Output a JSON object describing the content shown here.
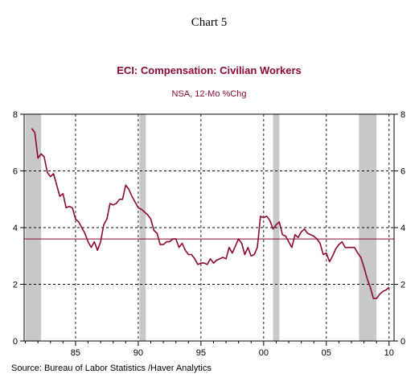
{
  "header": {
    "chart_number": "Chart 5"
  },
  "footer": {
    "source": "Source:  Bureau of Labor Statistics /Haver Analytics"
  },
  "colors": {
    "series": "#8b0a2e",
    "title": "#8b0a2e",
    "recession": "#c8c8c8",
    "grid": "#000000",
    "reference_line": "#8b0a2e"
  },
  "chart_data": {
    "type": "line",
    "title": "ECI: Compensation: Civilian Workers",
    "subtitle": "NSA, 12-Mo %Chg",
    "xlabel": "",
    "ylabel": "",
    "xlim": [
      1980.9,
      2010.4
    ],
    "ylim": [
      0,
      8
    ],
    "x_ticks": [
      1985,
      1990,
      1995,
      2000,
      2005,
      2010
    ],
    "x_tick_labels": [
      "85",
      "90",
      "95",
      "00",
      "05",
      "10"
    ],
    "y_ticks": [
      0,
      2,
      4,
      6,
      8
    ],
    "y_tick_labels": [
      "0",
      "2",
      "4",
      "6",
      "8"
    ],
    "grid": true,
    "grid_style": "dashed",
    "reference_line": 3.6,
    "recessions": [
      [
        1981.0,
        1982.25
      ],
      [
        1990.1,
        1990.6
      ],
      [
        2000.75,
        2001.25
      ],
      [
        2007.6,
        2009.0
      ]
    ],
    "series": [
      {
        "x": [
          1981.5,
          1981.75,
          1982.0,
          1982.25,
          1982.5,
          1982.75,
          1983.0,
          1983.25,
          1983.5,
          1983.75,
          1984.0,
          1984.25,
          1984.5,
          1984.75,
          1985.0,
          1985.25,
          1985.5,
          1985.75,
          1986.0,
          1986.25,
          1986.5,
          1986.75,
          1987.0,
          1987.25,
          1987.5,
          1987.75,
          1988.0,
          1988.25,
          1988.5,
          1988.75,
          1989.0,
          1989.25,
          1989.5,
          1989.75,
          1990.0,
          1990.25,
          1990.5,
          1990.75,
          1991.0,
          1991.25,
          1991.5,
          1991.75,
          1992.0,
          1992.25,
          1992.5,
          1992.75,
          1993.0,
          1993.25,
          1993.5,
          1993.75,
          1994.0,
          1994.25,
          1994.5,
          1994.75,
          1995.0,
          1995.25,
          1995.5,
          1995.75,
          1996.0,
          1996.25,
          1996.5,
          1996.75,
          1997.0,
          1997.25,
          1997.5,
          1997.75,
          1998.0,
          1998.25,
          1998.5,
          1998.75,
          1999.0,
          1999.25,
          1999.5,
          1999.75,
          2000.0,
          2000.25,
          2000.5,
          2000.75,
          2001.0,
          2001.25,
          2001.5,
          2001.75,
          2002.0,
          2002.25,
          2002.5,
          2002.75,
          2003.0,
          2003.25,
          2003.5,
          2003.75,
          2004.0,
          2004.25,
          2004.5,
          2004.75,
          2005.0,
          2005.25,
          2005.5,
          2005.75,
          2006.0,
          2006.25,
          2006.5,
          2006.75,
          2007.0,
          2007.25,
          2007.5,
          2007.75,
          2008.0,
          2008.25,
          2008.5,
          2008.75,
          2009.0,
          2009.25,
          2009.5,
          2009.75,
          2010.0
        ],
        "values": [
          7.5,
          7.35,
          6.45,
          6.6,
          6.5,
          5.95,
          5.8,
          5.9,
          5.5,
          5.1,
          5.2,
          4.7,
          4.75,
          4.7,
          4.3,
          4.2,
          4.0,
          3.8,
          3.5,
          3.3,
          3.5,
          3.2,
          3.5,
          4.1,
          4.3,
          4.85,
          4.8,
          4.85,
          5.0,
          5.0,
          5.5,
          5.35,
          5.1,
          4.9,
          4.7,
          4.65,
          4.55,
          4.45,
          4.3,
          3.9,
          3.8,
          3.4,
          3.4,
          3.5,
          3.5,
          3.6,
          3.6,
          3.3,
          3.45,
          3.2,
          3.05,
          3.05,
          2.9,
          2.7,
          2.75,
          2.75,
          2.7,
          2.9,
          2.75,
          2.85,
          2.9,
          2.95,
          2.9,
          3.3,
          3.1,
          3.35,
          3.6,
          3.45,
          3.05,
          3.3,
          3.0,
          3.05,
          3.3,
          4.4,
          4.35,
          4.4,
          4.25,
          3.95,
          4.1,
          4.2,
          3.75,
          3.7,
          3.5,
          3.3,
          3.75,
          3.65,
          3.85,
          3.95,
          3.8,
          3.75,
          3.7,
          3.6,
          3.45,
          3.05,
          3.1,
          2.8,
          3.0,
          3.25,
          3.4,
          3.5,
          3.3,
          3.3,
          3.3,
          3.3,
          3.1,
          2.95,
          2.6,
          2.2,
          1.9,
          1.5,
          1.5,
          1.65,
          1.75,
          1.8,
          1.9
        ]
      }
    ]
  }
}
